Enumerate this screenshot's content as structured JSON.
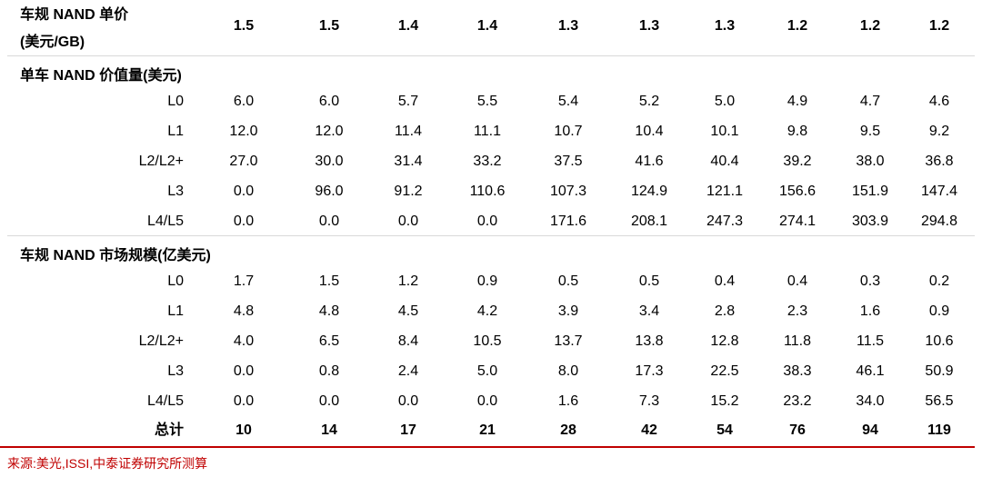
{
  "header": {
    "title_line1": "车规 NAND 单价",
    "title_line2": "(美元/GB)",
    "values": [
      "1.5",
      "1.5",
      "1.4",
      "1.4",
      "1.3",
      "1.3",
      "1.3",
      "1.2",
      "1.2",
      "1.2"
    ]
  },
  "section1": {
    "title": "单车 NAND 价值量(美元)",
    "rows": [
      {
        "label": "L0",
        "values": [
          "6.0",
          "6.0",
          "5.7",
          "5.5",
          "5.4",
          "5.2",
          "5.0",
          "4.9",
          "4.7",
          "4.6"
        ]
      },
      {
        "label": "L1",
        "values": [
          "12.0",
          "12.0",
          "11.4",
          "11.1",
          "10.7",
          "10.4",
          "10.1",
          "9.8",
          "9.5",
          "9.2"
        ]
      },
      {
        "label": "L2/L2+",
        "values": [
          "27.0",
          "30.0",
          "31.4",
          "33.2",
          "37.5",
          "41.6",
          "40.4",
          "39.2",
          "38.0",
          "36.8"
        ]
      },
      {
        "label": "L3",
        "values": [
          "0.0",
          "96.0",
          "91.2",
          "110.6",
          "107.3",
          "124.9",
          "121.1",
          "156.6",
          "151.9",
          "147.4"
        ]
      },
      {
        "label": "L4/L5",
        "values": [
          "0.0",
          "0.0",
          "0.0",
          "0.0",
          "171.6",
          "208.1",
          "247.3",
          "274.1",
          "303.9",
          "294.8"
        ]
      }
    ]
  },
  "section2": {
    "title": "车规 NAND 市场规模(亿美元)",
    "rows": [
      {
        "label": "L0",
        "values": [
          "1.7",
          "1.5",
          "1.2",
          "0.9",
          "0.5",
          "0.5",
          "0.4",
          "0.4",
          "0.3",
          "0.2"
        ]
      },
      {
        "label": "L1",
        "values": [
          "4.8",
          "4.8",
          "4.5",
          "4.2",
          "3.9",
          "3.4",
          "2.8",
          "2.3",
          "1.6",
          "0.9"
        ]
      },
      {
        "label": "L2/L2+",
        "values": [
          "4.0",
          "6.5",
          "8.4",
          "10.5",
          "13.7",
          "13.8",
          "12.8",
          "11.8",
          "11.5",
          "10.6"
        ]
      },
      {
        "label": "L3",
        "values": [
          "0.0",
          "0.8",
          "2.4",
          "5.0",
          "8.0",
          "17.3",
          "22.5",
          "38.3",
          "46.1",
          "50.9"
        ]
      },
      {
        "label": "L4/L5",
        "values": [
          "0.0",
          "0.0",
          "0.0",
          "0.0",
          "1.6",
          "7.3",
          "15.2",
          "23.2",
          "34.0",
          "56.5"
        ]
      }
    ],
    "total": {
      "label": "总计",
      "values": [
        "10",
        "14",
        "17",
        "21",
        "28",
        "42",
        "54",
        "76",
        "94",
        "119"
      ]
    }
  },
  "source": "来源:美光,ISSI,中泰证券研究所测算",
  "colors": {
    "source_red": "#c00000",
    "divider": "#d9d9d9"
  }
}
